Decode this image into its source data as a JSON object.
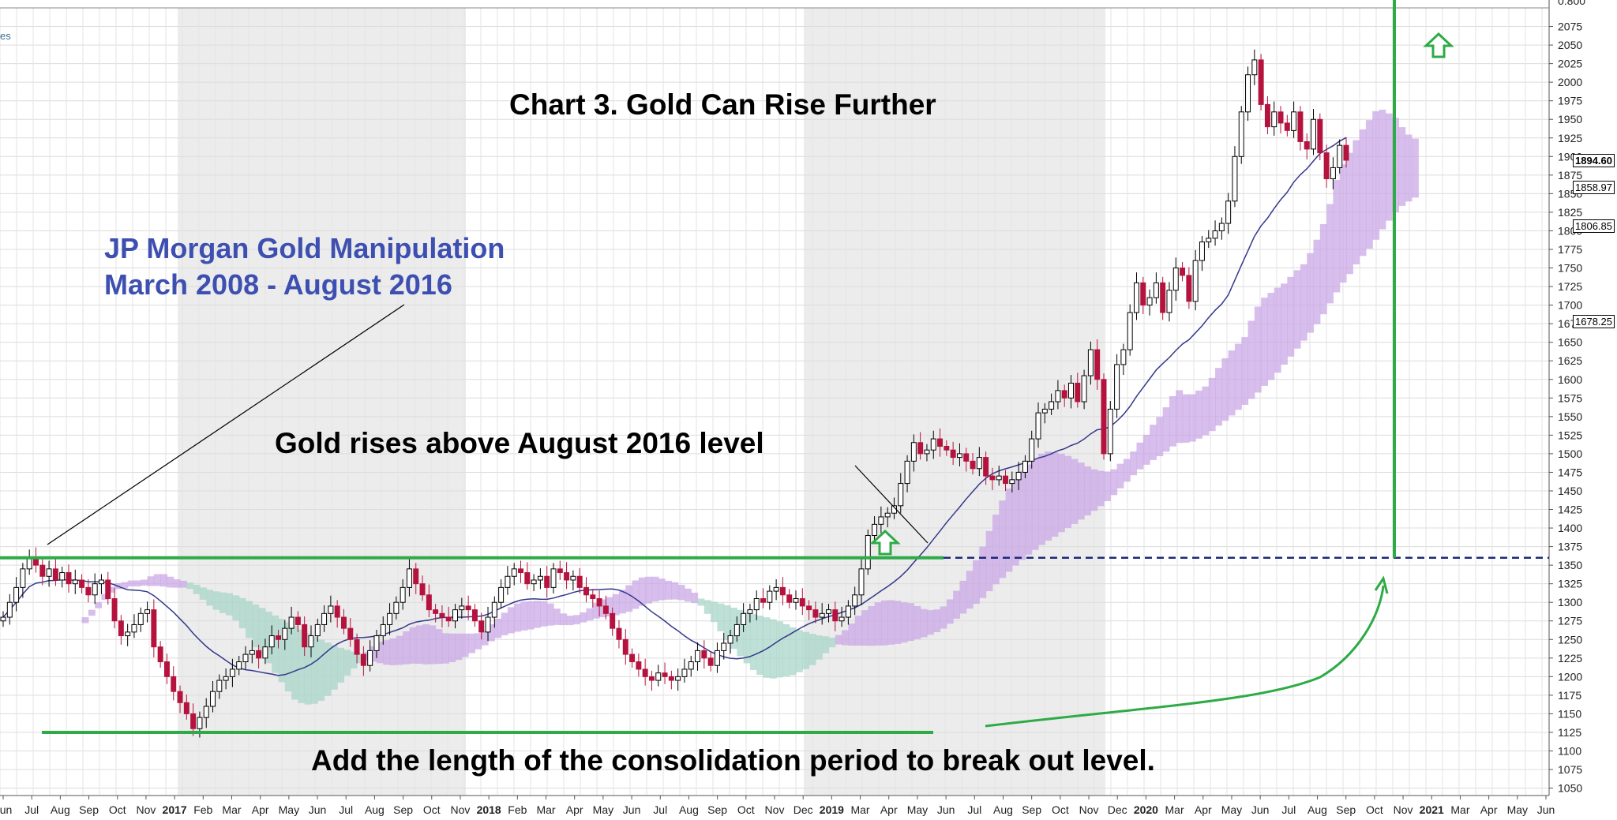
{
  "annotations": {
    "title": "Chart 3.  Gold Can Rise Further",
    "jpm_line1": "JP Morgan Gold Manipulation",
    "jpm_line2": "March 2008 - August 2016",
    "breakout_note": "Gold rises above August 2016 level",
    "target_note": "Add the length of the consolidation period to break out level.",
    "corner_text": "es"
  },
  "colors": {
    "up_candle": "#ffffff",
    "down_candle": "#b5123e",
    "moving_average": "#34388a",
    "cloud_bearish": "#c9a8e6",
    "cloud_bullish": "#a9d6c8",
    "level_lines": "#2eaa47",
    "dashed_level": "#1c2a7a",
    "annotation_blue": "#3d4fb0"
  },
  "chart_data": {
    "type": "candlestick",
    "title": "Chart 3.  Gold Can Rise Further",
    "y_range": [
      1040,
      2100
    ],
    "y_axis_ticks": [
      1050,
      1075,
      1100,
      1125,
      1150,
      1175,
      1200,
      1225,
      1250,
      1275,
      1300,
      1325,
      1350,
      1375,
      1400,
      1425,
      1450,
      1475,
      1500,
      1525,
      1550,
      1575,
      1600,
      1625,
      1650,
      1675,
      1700,
      1725,
      1750,
      1775,
      1800,
      1825,
      1850,
      1875,
      1900,
      1925,
      1950,
      1975,
      2000,
      2025,
      2050,
      2075
    ],
    "y_axis_top_partial": "0.800",
    "price_tags": [
      {
        "label": "1894.60",
        "value": 1894.6,
        "bold": true
      },
      {
        "label": "1858.97",
        "value": 1858.97,
        "bold": false
      },
      {
        "label": "1806.85",
        "value": 1806.85,
        "bold": false
      },
      {
        "label": "1678.25",
        "value": 1678.25,
        "bold": false
      }
    ],
    "x_labels": [
      "Jun",
      "Jul",
      "Aug",
      "Sep",
      "Oct",
      "Nov",
      "2017",
      "Feb",
      "Mar",
      "Apr",
      "May",
      "Jun",
      "Jul",
      "Aug",
      "Sep",
      "Oct",
      "Nov",
      "2018",
      "Feb",
      "Mar",
      "Apr",
      "May",
      "Jun",
      "Jul",
      "Aug",
      "Sep",
      "Oct",
      "Nov",
      "Dec",
      "2019",
      "Mar",
      "Apr",
      "May",
      "Jun",
      "Jul",
      "Aug",
      "Sep",
      "Oct",
      "Nov",
      "Dec",
      "2020",
      "Mar",
      "Apr",
      "May",
      "Jun",
      "Jul",
      "Aug",
      "Sep",
      "Oct",
      "Nov",
      "2021",
      "Mar",
      "Apr",
      "May",
      "Jun"
    ],
    "year_labels": [
      "2017",
      "2018",
      "2019",
      "2020",
      "2021"
    ],
    "resistance_level": 1360,
    "support_level": 1125,
    "closing_path": [
      [
        0,
        1280
      ],
      [
        1,
        1300
      ],
      [
        2,
        1320
      ],
      [
        3,
        1345
      ],
      [
        4,
        1360
      ],
      [
        5,
        1350
      ],
      [
        6,
        1335
      ],
      [
        7,
        1345
      ],
      [
        8,
        1330
      ],
      [
        9,
        1340
      ],
      [
        10,
        1325
      ],
      [
        11,
        1330
      ],
      [
        12,
        1320
      ],
      [
        13,
        1310
      ],
      [
        14,
        1325
      ],
      [
        15,
        1330
      ],
      [
        16,
        1305
      ],
      [
        17,
        1275
      ],
      [
        18,
        1255
      ],
      [
        19,
        1260
      ],
      [
        20,
        1270
      ],
      [
        21,
        1285
      ],
      [
        22,
        1290
      ],
      [
        23,
        1240
      ],
      [
        24,
        1220
      ],
      [
        25,
        1200
      ],
      [
        26,
        1180
      ],
      [
        27,
        1165
      ],
      [
        28,
        1150
      ],
      [
        29,
        1130
      ],
      [
        30,
        1145
      ],
      [
        31,
        1160
      ],
      [
        32,
        1180
      ],
      [
        33,
        1195
      ],
      [
        34,
        1200
      ],
      [
        35,
        1210
      ],
      [
        36,
        1220
      ],
      [
        37,
        1230
      ],
      [
        38,
        1235
      ],
      [
        39,
        1225
      ],
      [
        40,
        1240
      ],
      [
        41,
        1255
      ],
      [
        42,
        1250
      ],
      [
        43,
        1265
      ],
      [
        44,
        1280
      ],
      [
        45,
        1270
      ],
      [
        46,
        1240
      ],
      [
        47,
        1255
      ],
      [
        48,
        1270
      ],
      [
        49,
        1285
      ],
      [
        50,
        1295
      ],
      [
        51,
        1280
      ],
      [
        52,
        1265
      ],
      [
        53,
        1250
      ],
      [
        54,
        1230
      ],
      [
        55,
        1215
      ],
      [
        56,
        1235
      ],
      [
        57,
        1255
      ],
      [
        58,
        1270
      ],
      [
        59,
        1285
      ],
      [
        60,
        1300
      ],
      [
        61,
        1320
      ],
      [
        62,
        1345
      ],
      [
        63,
        1325
      ],
      [
        64,
        1310
      ],
      [
        65,
        1290
      ],
      [
        66,
        1285
      ],
      [
        67,
        1280
      ],
      [
        68,
        1275
      ],
      [
        69,
        1290
      ],
      [
        70,
        1295
      ],
      [
        71,
        1290
      ],
      [
        72,
        1275
      ],
      [
        73,
        1260
      ],
      [
        74,
        1280
      ],
      [
        75,
        1300
      ],
      [
        76,
        1320
      ],
      [
        77,
        1335
      ],
      [
        78,
        1345
      ],
      [
        79,
        1340
      ],
      [
        80,
        1325
      ],
      [
        81,
        1330
      ],
      [
        82,
        1335
      ],
      [
        83,
        1320
      ],
      [
        84,
        1345
      ],
      [
        85,
        1340
      ],
      [
        86,
        1330
      ],
      [
        87,
        1335
      ],
      [
        88,
        1320
      ],
      [
        89,
        1310
      ],
      [
        90,
        1305
      ],
      [
        91,
        1295
      ],
      [
        92,
        1285
      ],
      [
        93,
        1265
      ],
      [
        94,
        1250
      ],
      [
        95,
        1230
      ],
      [
        96,
        1220
      ],
      [
        97,
        1210
      ],
      [
        98,
        1200
      ],
      [
        99,
        1195
      ],
      [
        100,
        1205
      ],
      [
        101,
        1200
      ],
      [
        102,
        1195
      ],
      [
        103,
        1200
      ],
      [
        104,
        1210
      ],
      [
        105,
        1220
      ],
      [
        106,
        1235
      ],
      [
        107,
        1225
      ],
      [
        108,
        1215
      ],
      [
        109,
        1235
      ],
      [
        110,
        1245
      ],
      [
        111,
        1255
      ],
      [
        112,
        1270
      ],
      [
        113,
        1285
      ],
      [
        114,
        1290
      ],
      [
        115,
        1305
      ],
      [
        116,
        1300
      ],
      [
        117,
        1315
      ],
      [
        118,
        1320
      ],
      [
        119,
        1310
      ],
      [
        120,
        1300
      ],
      [
        121,
        1305
      ],
      [
        122,
        1295
      ],
      [
        123,
        1290
      ],
      [
        124,
        1280
      ],
      [
        125,
        1285
      ],
      [
        126,
        1290
      ],
      [
        127,
        1275
      ],
      [
        128,
        1280
      ],
      [
        129,
        1295
      ],
      [
        130,
        1310
      ],
      [
        131,
        1345
      ],
      [
        132,
        1390
      ],
      [
        133,
        1405
      ],
      [
        134,
        1415
      ],
      [
        135,
        1420
      ],
      [
        136,
        1430
      ],
      [
        137,
        1460
      ],
      [
        138,
        1490
      ],
      [
        139,
        1515
      ],
      [
        140,
        1500
      ],
      [
        141,
        1505
      ],
      [
        142,
        1520
      ],
      [
        143,
        1510
      ],
      [
        144,
        1505
      ],
      [
        145,
        1495
      ],
      [
        146,
        1500
      ],
      [
        147,
        1490
      ],
      [
        148,
        1480
      ],
      [
        149,
        1495
      ],
      [
        150,
        1470
      ],
      [
        151,
        1465
      ],
      [
        152,
        1470
      ],
      [
        153,
        1460
      ],
      [
        154,
        1465
      ],
      [
        155,
        1475
      ],
      [
        156,
        1490
      ],
      [
        157,
        1520
      ],
      [
        158,
        1555
      ],
      [
        159,
        1560
      ],
      [
        160,
        1570
      ],
      [
        161,
        1585
      ],
      [
        162,
        1575
      ],
      [
        163,
        1595
      ],
      [
        164,
        1570
      ],
      [
        165,
        1605
      ],
      [
        166,
        1640
      ],
      [
        167,
        1600
      ],
      [
        168,
        1500
      ],
      [
        169,
        1560
      ],
      [
        170,
        1620
      ],
      [
        171,
        1640
      ],
      [
        172,
        1690
      ],
      [
        173,
        1730
      ],
      [
        174,
        1700
      ],
      [
        175,
        1710
      ],
      [
        176,
        1730
      ],
      [
        177,
        1690
      ],
      [
        178,
        1720
      ],
      [
        179,
        1750
      ],
      [
        180,
        1740
      ],
      [
        181,
        1705
      ],
      [
        182,
        1760
      ],
      [
        183,
        1785
      ],
      [
        184,
        1790
      ],
      [
        185,
        1800
      ],
      [
        186,
        1810
      ],
      [
        187,
        1840
      ],
      [
        188,
        1900
      ],
      [
        189,
        1960
      ],
      [
        190,
        2010
      ],
      [
        191,
        2030
      ],
      [
        192,
        1970
      ],
      [
        193,
        1940
      ],
      [
        194,
        1960
      ],
      [
        195,
        1945
      ],
      [
        196,
        1935
      ],
      [
        197,
        1960
      ],
      [
        198,
        1920
      ],
      [
        199,
        1910
      ],
      [
        200,
        1950
      ],
      [
        201,
        1905
      ],
      [
        202,
        1870
      ],
      [
        203,
        1885
      ],
      [
        204,
        1915
      ],
      [
        205,
        1895
      ]
    ]
  }
}
